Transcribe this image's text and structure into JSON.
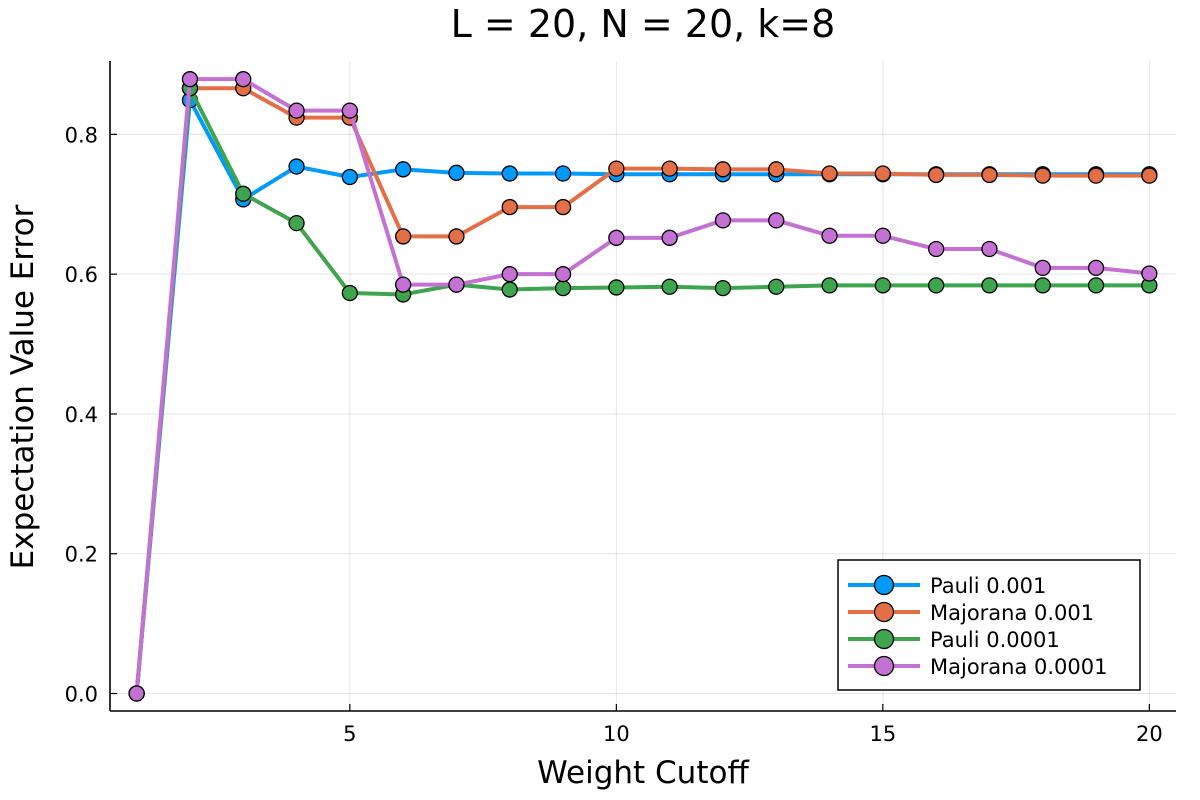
{
  "chart_data": {
    "type": "line",
    "title": "L = 20, N = 20, k=8",
    "xlabel": "Weight Cutoff",
    "ylabel": "Expectation Value Error",
    "xlim": [
      0.5,
      20.5
    ],
    "ylim": [
      -0.025,
      0.905
    ],
    "xticks": [
      5,
      10,
      15,
      20
    ],
    "xtick_labels": [
      "5",
      "10",
      "15",
      "20"
    ],
    "yticks": [
      0.0,
      0.2,
      0.4,
      0.6,
      0.8
    ],
    "ytick_labels": [
      "0.0",
      "0.2",
      "0.4",
      "0.6",
      "0.8"
    ],
    "grid": true,
    "legend_position": "bottom-right",
    "x": [
      1,
      2,
      3,
      4,
      5,
      6,
      7,
      8,
      9,
      10,
      11,
      12,
      13,
      14,
      15,
      16,
      17,
      18,
      19,
      20
    ],
    "series": [
      {
        "name": "Pauli 0.001",
        "color": "#009AFA",
        "values": [
          0.0,
          0.849,
          0.707,
          0.754,
          0.739,
          0.75,
          0.745,
          0.744,
          0.744,
          0.743,
          0.743,
          0.743,
          0.743,
          0.743,
          0.743,
          0.743,
          0.743,
          0.743,
          0.743,
          0.743
        ]
      },
      {
        "name": "Majorana 0.001",
        "color": "#E36F47",
        "values": [
          0.0,
          0.866,
          0.866,
          0.824,
          0.824,
          0.654,
          0.654,
          0.696,
          0.696,
          0.751,
          0.751,
          0.75,
          0.75,
          0.744,
          0.744,
          0.742,
          0.742,
          0.741,
          0.741,
          0.741
        ]
      },
      {
        "name": "Pauli 0.0001",
        "color": "#3EA44E",
        "values": [
          0.0,
          0.866,
          0.715,
          0.673,
          0.573,
          0.571,
          0.585,
          0.578,
          0.58,
          0.581,
          0.582,
          0.58,
          0.582,
          0.584,
          0.584,
          0.584,
          0.584,
          0.584,
          0.584,
          0.584
        ]
      },
      {
        "name": "Majorana 0.0001",
        "color": "#C371D2",
        "values": [
          0.0,
          0.879,
          0.879,
          0.834,
          0.834,
          0.585,
          0.585,
          0.6,
          0.6,
          0.652,
          0.652,
          0.677,
          0.677,
          0.655,
          0.655,
          0.636,
          0.636,
          0.609,
          0.609,
          0.601
        ]
      }
    ]
  }
}
